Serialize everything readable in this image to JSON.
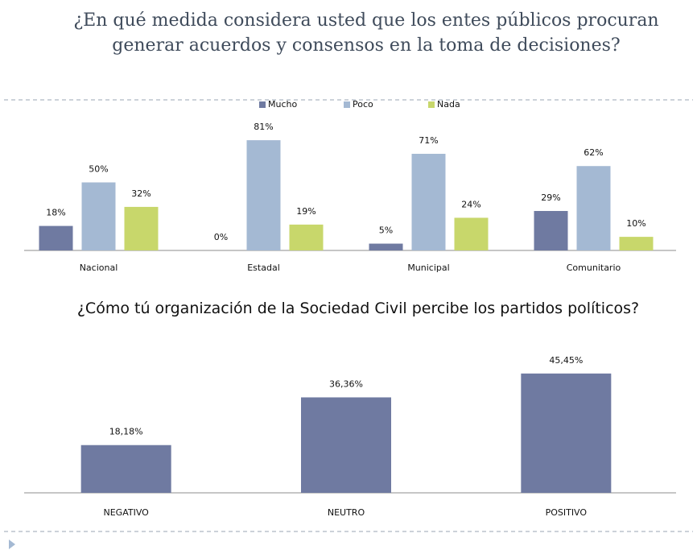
{
  "chart_data": [
    {
      "type": "bar",
      "title": "¿En qué medida considera usted que los entes públicos procuran generar acuerdos y consensos en la toma de decisiones?",
      "categories": [
        "Nacional",
        "Estadal",
        "Municipal",
        "Comunitario"
      ],
      "series": [
        {
          "name": "Mucho",
          "color": "#6f7aa1",
          "values": [
            18,
            0,
            5,
            29
          ],
          "value_labels": [
            "18%",
            "0%",
            "5%",
            "29%"
          ]
        },
        {
          "name": "Poco",
          "color": "#a4b9d3",
          "values": [
            50,
            81,
            71,
            62
          ],
          "value_labels": [
            "50%",
            "81%",
            "71%",
            "62%"
          ]
        },
        {
          "name": "Nada",
          "color": "#c8d76b",
          "values": [
            32,
            19,
            24,
            10
          ],
          "value_labels": [
            "32%",
            "19%",
            "24%",
            "10%"
          ]
        }
      ],
      "legend": "top"
    },
    {
      "type": "bar",
      "title": "¿Cómo tú organización de la Sociedad Civil percibe los partidos políticos?",
      "categories": [
        "NEGATIVO",
        "NEUTRO",
        "POSITIVO"
      ],
      "values": [
        18.18,
        36.36,
        45.45
      ],
      "value_labels": [
        "18,18%",
        "36,36%",
        "45,45%"
      ],
      "color": "#6f7aa1"
    }
  ]
}
